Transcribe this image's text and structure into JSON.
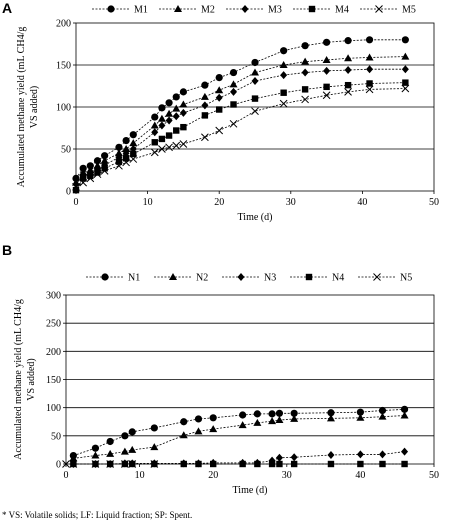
{
  "footnote": "* VS: Volatile solids; LF: Liquid fraction; SP: Spent.",
  "chart_data": [
    {
      "panel_label": "A",
      "type": "line",
      "xlabel": "Time (d)",
      "ylabel_line1": "Accumulated  methane yield (mL CH4/g",
      "ylabel_line2": "VS  added)",
      "xlim": [
        0,
        50
      ],
      "ylim": [
        0,
        200
      ],
      "xticks": [
        0,
        10,
        20,
        30,
        40,
        50
      ],
      "yticks": [
        0,
        50,
        100,
        150,
        200
      ],
      "grid": "horizontal",
      "legend_position": "top",
      "series": [
        {
          "name": "M1",
          "marker": "circle",
          "x": [
            0,
            1,
            2,
            3,
            4,
            6,
            7,
            8,
            11,
            12,
            13,
            14,
            15,
            18,
            20,
            22,
            25,
            29,
            32,
            35,
            38,
            41,
            46
          ],
          "y": [
            15,
            27,
            30,
            36,
            42,
            52,
            60,
            67,
            88,
            99,
            105,
            112,
            118,
            126,
            135,
            141,
            153,
            167,
            173,
            177,
            179,
            180,
            180
          ]
        },
        {
          "name": "M2",
          "marker": "triangle",
          "x": [
            0,
            1,
            2,
            3,
            4,
            6,
            7,
            8,
            11,
            12,
            13,
            14,
            15,
            18,
            20,
            22,
            25,
            29,
            32,
            35,
            38,
            41,
            46
          ],
          "y": [
            10,
            22,
            25,
            30,
            36,
            45,
            50,
            57,
            78,
            86,
            92,
            98,
            103,
            112,
            120,
            127,
            141,
            150,
            154,
            156,
            158,
            159,
            160
          ]
        },
        {
          "name": "M3",
          "marker": "diamond",
          "x": [
            0,
            1,
            2,
            3,
            4,
            6,
            7,
            8,
            11,
            12,
            13,
            14,
            15,
            18,
            20,
            22,
            25,
            29,
            32,
            35,
            38,
            41,
            46
          ],
          "y": [
            8,
            18,
            22,
            26,
            31,
            40,
            45,
            50,
            70,
            78,
            84,
            89,
            93,
            102,
            111,
            118,
            131,
            138,
            141,
            143,
            144,
            145,
            145
          ]
        },
        {
          "name": "M4",
          "marker": "square",
          "x": [
            0,
            1,
            2,
            3,
            4,
            6,
            7,
            8,
            11,
            12,
            13,
            14,
            15,
            18,
            20,
            22,
            25,
            29,
            32,
            35,
            38,
            41,
            46
          ],
          "y": [
            1,
            15,
            18,
            22,
            27,
            35,
            39,
            44,
            58,
            62,
            66,
            72,
            76,
            90,
            97,
            103,
            110,
            117,
            121,
            124,
            126,
            128,
            129
          ]
        },
        {
          "name": "M5",
          "marker": "x",
          "x": [
            0,
            1,
            2,
            3,
            4,
            6,
            7,
            8,
            11,
            12,
            13,
            14,
            15,
            18,
            20,
            22,
            25,
            29,
            32,
            35,
            38,
            41,
            46
          ],
          "y": [
            5,
            10,
            15,
            20,
            24,
            30,
            34,
            38,
            46,
            50,
            52,
            54,
            56,
            64,
            72,
            80,
            95,
            104,
            109,
            114,
            118,
            121,
            122
          ]
        }
      ]
    },
    {
      "panel_label": "B",
      "type": "line",
      "xlabel": "Time (d)",
      "ylabel_line1": "Accumulated  methane yield (mL CH4/g",
      "ylabel_line2": "VS  added)",
      "xlim": [
        0,
        50
      ],
      "ylim": [
        0,
        300
      ],
      "xticks": [
        0,
        10,
        20,
        30,
        40,
        50
      ],
      "yticks": [
        0,
        50,
        100,
        150,
        200,
        250,
        300
      ],
      "grid": "horizontal",
      "legend_position": "top",
      "series": [
        {
          "name": "N1",
          "marker": "circle",
          "x": [
            1,
            4,
            6,
            8,
            9,
            12,
            16,
            18,
            20,
            24,
            26,
            28,
            29,
            31,
            36,
            40,
            43,
            46
          ],
          "y": [
            15,
            28,
            40,
            50,
            57,
            64,
            75,
            80,
            82,
            87,
            89,
            89,
            90,
            90,
            91,
            92,
            95,
            97
          ]
        },
        {
          "name": "N2",
          "marker": "triangle",
          "x": [
            1,
            4,
            6,
            8,
            9,
            12,
            16,
            18,
            20,
            24,
            26,
            28,
            29,
            31,
            36,
            40,
            43,
            46
          ],
          "y": [
            10,
            15,
            18,
            22,
            25,
            30,
            51,
            58,
            62,
            69,
            73,
            76,
            78,
            80,
            81,
            82,
            84,
            86
          ]
        },
        {
          "name": "N3",
          "marker": "diamond",
          "x": [
            1,
            4,
            6,
            8,
            9,
            12,
            16,
            18,
            20,
            24,
            26,
            28,
            29,
            31,
            36,
            40,
            43,
            46
          ],
          "y": [
            0,
            0,
            0,
            1,
            1,
            1,
            1,
            1,
            2,
            2,
            2,
            6,
            11,
            12,
            16,
            17,
            17,
            22
          ]
        },
        {
          "name": "N4",
          "marker": "square",
          "x": [
            1,
            4,
            6,
            8,
            9,
            12,
            16,
            18,
            20,
            24,
            26,
            28,
            29,
            31,
            36,
            40,
            43,
            46
          ],
          "y": [
            0,
            0,
            0,
            0,
            0,
            0,
            0,
            0,
            0,
            0,
            0,
            0,
            0,
            0,
            0,
            0,
            0,
            0
          ]
        },
        {
          "name": "N5",
          "marker": "x",
          "x": [
            0,
            1,
            4,
            6,
            8,
            9,
            12
          ],
          "y": [
            0,
            0,
            0,
            0,
            0,
            0,
            0
          ]
        }
      ]
    }
  ]
}
